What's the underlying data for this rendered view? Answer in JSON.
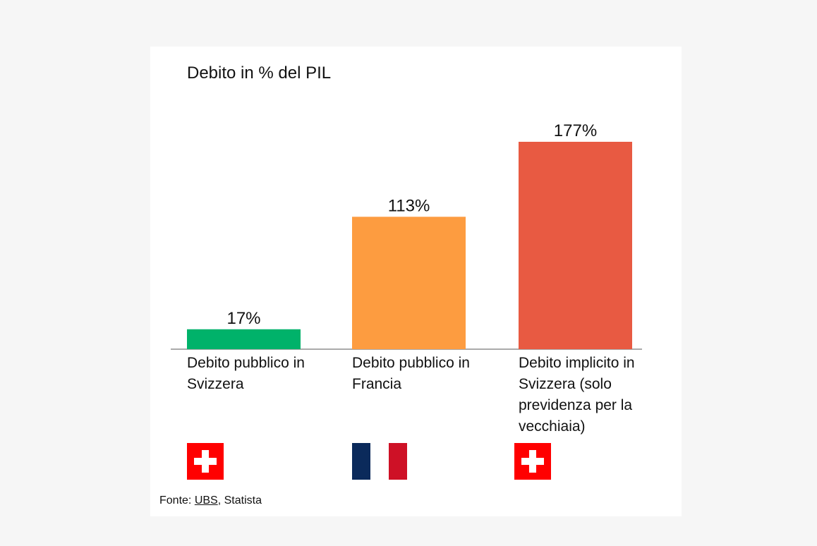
{
  "chart_data": {
    "type": "bar",
    "title": "Debito in % del PIL",
    "categories": [
      "Debito pubblico in Svizzera",
      "Debito pubblico in Francia",
      "Debito implicito in Svizzera (solo previdenza per la vecchiaia)"
    ],
    "values": [
      17,
      113,
      177
    ],
    "value_labels": [
      "17%",
      "113%",
      "177%"
    ],
    "colors": [
      "#00b26a",
      "#fd9c40",
      "#e85a42"
    ],
    "source": {
      "prefix": "Fonte:",
      "link": "UBS",
      "rest": ", Statista"
    }
  }
}
